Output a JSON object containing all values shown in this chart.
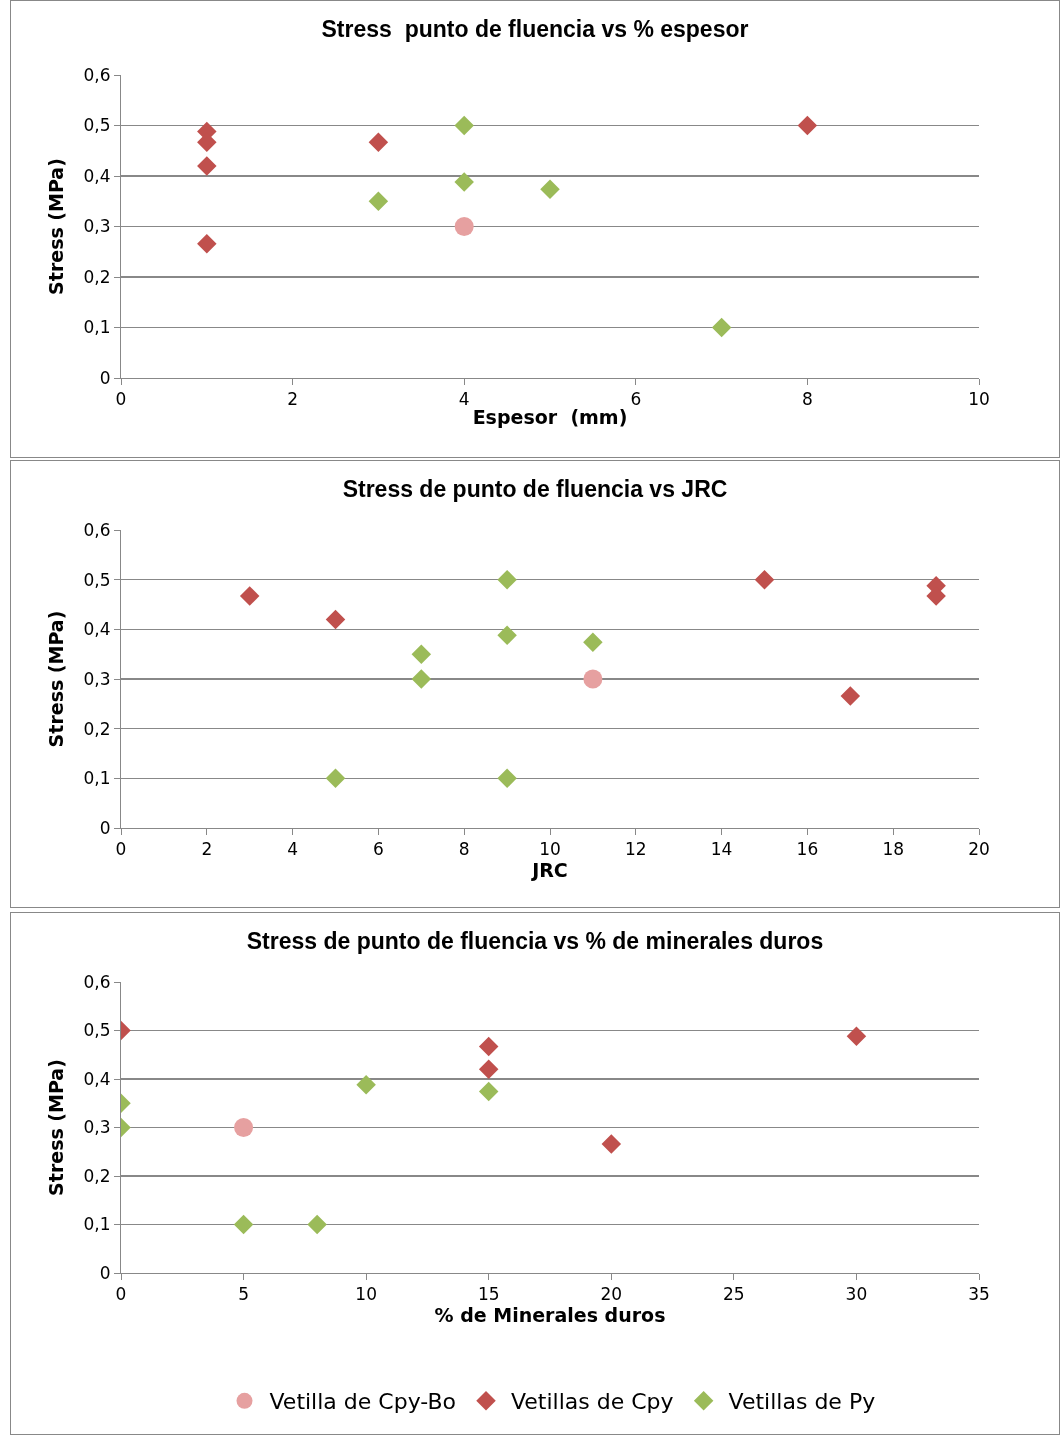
{
  "chart_data": [
    {
      "type": "scatter",
      "title": "Stress  punto de fluencia vs % espesor",
      "xlabel": "Espesor  (mm)",
      "ylabel": "Stress (MPa)",
      "xlim": [
        0,
        10
      ],
      "xticks": [
        0,
        2,
        4,
        6,
        8,
        10
      ],
      "ylim": [
        0,
        0.6
      ],
      "yticks": [
        {
          "value": 0,
          "label": "0"
        },
        {
          "value": 0.1,
          "label": "0,1"
        },
        {
          "value": 0.2,
          "label": "0,2"
        },
        {
          "value": 0.3,
          "label": "0,3"
        },
        {
          "value": 0.4,
          "label": "0,4"
        },
        {
          "value": 0.5,
          "label": "0,5"
        },
        {
          "value": 0.6,
          "label": "0,6"
        }
      ],
      "grid": "y",
      "legend": false,
      "series": [
        {
          "color": "#e6a0a0",
          "marker": "circle",
          "x": [
            4
          ],
          "values": [
            0.3
          ]
        },
        {
          "color": "#c0504d",
          "marker": "diamond",
          "x": [
            1,
            1,
            1,
            1,
            3,
            8
          ],
          "values": [
            0.488,
            0.467,
            0.42,
            0.266,
            0.467,
            0.5
          ]
        },
        {
          "color": "#9bbb59",
          "marker": "diamond",
          "x": [
            4,
            4,
            3,
            5,
            7
          ],
          "values": [
            0.5,
            0.388,
            0.35,
            0.374,
            0.1
          ]
        }
      ]
    },
    {
      "type": "scatter",
      "title": "Stress de punto de fluencia vs JRC",
      "xlabel": "JRC",
      "ylabel": "Stress (MPa)",
      "xlim": [
        0,
        20
      ],
      "xticks": [
        0,
        2,
        4,
        6,
        8,
        10,
        12,
        14,
        16,
        18,
        20
      ],
      "ylim": [
        0,
        0.6
      ],
      "yticks": [
        {
          "value": 0,
          "label": "0"
        },
        {
          "value": 0.1,
          "label": "0,1"
        },
        {
          "value": 0.2,
          "label": "0,2"
        },
        {
          "value": 0.3,
          "label": "0,3"
        },
        {
          "value": 0.4,
          "label": "0,4"
        },
        {
          "value": 0.5,
          "label": "0,5"
        },
        {
          "value": 0.6,
          "label": "0,6"
        }
      ],
      "grid": "y",
      "legend": false,
      "series": [
        {
          "color": "#e6a0a0",
          "marker": "circle",
          "x": [
            11
          ],
          "values": [
            0.3
          ]
        },
        {
          "color": "#c0504d",
          "marker": "diamond",
          "x": [
            3,
            5,
            15,
            19,
            19,
            17
          ],
          "values": [
            0.467,
            0.42,
            0.5,
            0.488,
            0.467,
            0.266
          ]
        },
        {
          "color": "#9bbb59",
          "marker": "diamond",
          "x": [
            9,
            9,
            7,
            7,
            11,
            5,
            9
          ],
          "values": [
            0.5,
            0.388,
            0.35,
            0.3,
            0.374,
            0.1,
            0.1
          ]
        }
      ]
    },
    {
      "type": "scatter",
      "title": "Stress de punto de fluencia vs % de minerales duros",
      "xlabel": "% de Minerales duros",
      "ylabel": "Stress (MPa)",
      "xlim": [
        0,
        35
      ],
      "xticks": [
        0,
        5,
        10,
        15,
        20,
        25,
        30,
        35
      ],
      "ylim": [
        0,
        0.6
      ],
      "yticks": [
        {
          "value": 0,
          "label": "0"
        },
        {
          "value": 0.1,
          "label": "0,1"
        },
        {
          "value": 0.2,
          "label": "0,2"
        },
        {
          "value": 0.3,
          "label": "0,3"
        },
        {
          "value": 0.4,
          "label": "0,4"
        },
        {
          "value": 0.5,
          "label": "0,5"
        },
        {
          "value": 0.6,
          "label": "0,6"
        }
      ],
      "grid": "y",
      "legend": "bottom",
      "series": [
        {
          "name": "Vetilla de Cpy-Bo",
          "color": "#e6a0a0",
          "marker": "circle",
          "x": [
            5
          ],
          "values": [
            0.3
          ]
        },
        {
          "name": "Vetillas de Cpy",
          "color": "#c0504d",
          "marker": "diamond",
          "x": [
            0,
            15,
            15,
            30,
            20
          ],
          "values": [
            0.5,
            0.467,
            0.42,
            0.488,
            0.266
          ]
        },
        {
          "name": "Vetillas de Py",
          "color": "#9bbb59",
          "marker": "diamond",
          "x": [
            10,
            0,
            0,
            15,
            5,
            8
          ],
          "values": [
            0.388,
            0.35,
            0.3,
            0.374,
            0.1,
            0.1
          ]
        }
      ]
    }
  ]
}
